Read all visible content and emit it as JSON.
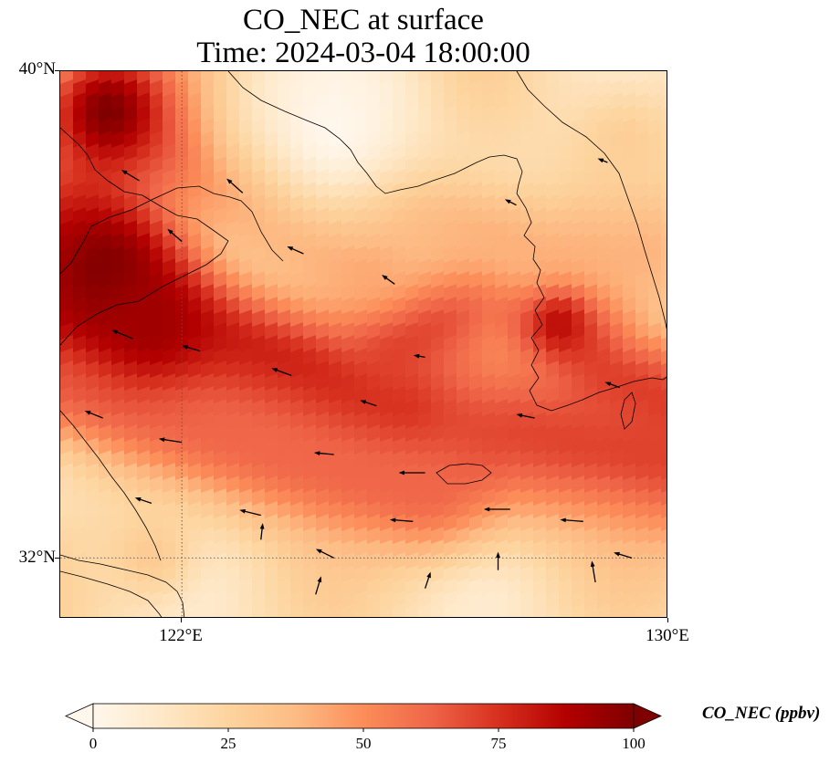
{
  "title_line1": "CO_NEC at surface",
  "title_line2": "Time: 2024-03-04 18:00:00",
  "lat_labels": [
    "40°N",
    "32°N"
  ],
  "lon_labels": [
    "122°E",
    "130°E"
  ],
  "extent": {
    "lon_min": 120.0,
    "lon_max": 130.0,
    "lat_min": 31.0,
    "lat_max": 40.0
  },
  "gridlines": {
    "lons": [
      122.0
    ],
    "lats": [
      32.0
    ],
    "style": "dotted"
  },
  "colormap": "OrRd",
  "colorbar": {
    "label": "CO_NEC (ppbv)",
    "ticks": [
      "0",
      "25",
      "50",
      "75",
      "100"
    ],
    "min": 0,
    "max": 100,
    "extend": "both",
    "colors": [
      "#fff7ec",
      "#fee8c8",
      "#fdd49e",
      "#fdbb84",
      "#fc8d59",
      "#ef6548",
      "#d7301f",
      "#b30000",
      "#7f0000"
    ]
  },
  "field_features": [
    {
      "kind": "line",
      "points": [
        [
          120.0,
          37.2
        ],
        [
          121.5,
          35.6
        ],
        [
          124.0,
          34.3
        ],
        [
          126.0,
          33.8
        ],
        [
          127.5,
          34.0
        ],
        [
          130.0,
          33.6
        ]
      ],
      "value": 70,
      "width_deg": 1.4
    },
    {
      "kind": "line",
      "points": [
        [
          120.0,
          35.8
        ],
        [
          122.0,
          35.6
        ],
        [
          124.0,
          35.0
        ],
        [
          125.5,
          34.3
        ]
      ],
      "value": 82,
      "width_deg": 0.9
    },
    {
      "kind": "line",
      "points": [
        [
          120.0,
          34.8
        ],
        [
          122.0,
          34.3
        ],
        [
          124.5,
          33.5
        ],
        [
          126.0,
          33.2
        ]
      ],
      "value": 62,
      "width_deg": 1.0
    },
    {
      "kind": "line",
      "points": [
        [
          125.5,
          35.4
        ],
        [
          127.0,
          36.4
        ],
        [
          128.3,
          36.0
        ],
        [
          129.0,
          35.0
        ],
        [
          130.0,
          34.5
        ]
      ],
      "value": 72,
      "width_deg": 1.0
    },
    {
      "kind": "line",
      "points": [
        [
          124.0,
          38.2
        ],
        [
          126.0,
          37.5
        ],
        [
          128.0,
          36.8
        ],
        [
          129.5,
          37.0
        ]
      ],
      "value": 40,
      "width_deg": 1.0
    },
    {
      "kind": "line",
      "points": [
        [
          122.0,
          38.5
        ],
        [
          123.5,
          37.6
        ],
        [
          125.0,
          36.8
        ]
      ],
      "value": 45,
      "width_deg": 0.8
    },
    {
      "kind": "blob",
      "lon": 120.8,
      "lat": 39.3,
      "value": 100,
      "r": 1.2
    },
    {
      "kind": "blob",
      "lon": 120.8,
      "lat": 36.7,
      "value": 100,
      "r": 1.3
    },
    {
      "kind": "blob",
      "lon": 121.5,
      "lat": 35.8,
      "value": 92,
      "r": 0.9
    },
    {
      "kind": "blob",
      "lon": 128.2,
      "lat": 35.8,
      "value": 85,
      "r": 0.55
    },
    {
      "kind": "blob",
      "lon": 129.3,
      "lat": 38.8,
      "value": 28,
      "r": 1.0
    },
    {
      "kind": "blob",
      "lon": 124.5,
      "lat": 39.0,
      "value": 0,
      "r": 1.4
    },
    {
      "kind": "blob",
      "lon": 121.5,
      "lat": 32.0,
      "value": 30,
      "r": 0.8
    }
  ],
  "wind_arrows": [
    {
      "lon": 121.3,
      "lat": 38.2,
      "u": -1.0,
      "v": 0.6
    },
    {
      "lon": 122.0,
      "lat": 37.2,
      "u": -0.8,
      "v": 0.7
    },
    {
      "lon": 123.0,
      "lat": 38.0,
      "u": -0.9,
      "v": 0.8
    },
    {
      "lon": 124.0,
      "lat": 37.0,
      "u": -0.9,
      "v": 0.4
    },
    {
      "lon": 125.5,
      "lat": 36.5,
      "u": -0.7,
      "v": 0.5
    },
    {
      "lon": 127.5,
      "lat": 37.8,
      "u": -0.6,
      "v": 0.3
    },
    {
      "lon": 129.0,
      "lat": 38.5,
      "u": -0.5,
      "v": 0.2
    },
    {
      "lon": 121.2,
      "lat": 35.6,
      "u": -1.2,
      "v": 0.5
    },
    {
      "lon": 122.3,
      "lat": 35.4,
      "u": -1.0,
      "v": 0.3
    },
    {
      "lon": 123.8,
      "lat": 35.0,
      "u": -1.1,
      "v": 0.4
    },
    {
      "lon": 125.2,
      "lat": 34.5,
      "u": -0.9,
      "v": 0.3
    },
    {
      "lon": 126.0,
      "lat": 35.3,
      "u": -0.6,
      "v": 0.1
    },
    {
      "lon": 127.8,
      "lat": 34.3,
      "u": -1.0,
      "v": 0.2
    },
    {
      "lon": 129.2,
      "lat": 34.8,
      "u": -0.8,
      "v": 0.3
    },
    {
      "lon": 120.7,
      "lat": 34.3,
      "u": -1.0,
      "v": 0.4
    },
    {
      "lon": 122.0,
      "lat": 33.9,
      "u": -1.3,
      "v": 0.2
    },
    {
      "lon": 124.5,
      "lat": 33.7,
      "u": -1.1,
      "v": 0.1
    },
    {
      "lon": 126.0,
      "lat": 33.4,
      "u": -1.5,
      "v": 0.0
    },
    {
      "lon": 123.3,
      "lat": 32.7,
      "u": -1.2,
      "v": 0.3
    },
    {
      "lon": 125.8,
      "lat": 32.6,
      "u": -1.3,
      "v": 0.1
    },
    {
      "lon": 127.4,
      "lat": 32.8,
      "u": -1.5,
      "v": 0.0
    },
    {
      "lon": 128.6,
      "lat": 32.6,
      "u": -1.3,
      "v": 0.1
    },
    {
      "lon": 121.5,
      "lat": 32.9,
      "u": -0.9,
      "v": 0.3
    },
    {
      "lon": 124.5,
      "lat": 32.0,
      "u": -1.0,
      "v": 0.5
    },
    {
      "lon": 127.2,
      "lat": 31.8,
      "u": 0.0,
      "v": 1.0
    },
    {
      "lon": 128.8,
      "lat": 31.6,
      "u": -0.2,
      "v": 1.2
    },
    {
      "lon": 126.0,
      "lat": 31.5,
      "u": 0.3,
      "v": 0.9
    },
    {
      "lon": 124.2,
      "lat": 31.4,
      "u": 0.3,
      "v": 1.0
    },
    {
      "lon": 129.4,
      "lat": 32.0,
      "u": -1.0,
      "v": 0.3
    },
    {
      "lon": 123.3,
      "lat": 32.3,
      "u": 0.1,
      "v": 0.9
    }
  ]
}
